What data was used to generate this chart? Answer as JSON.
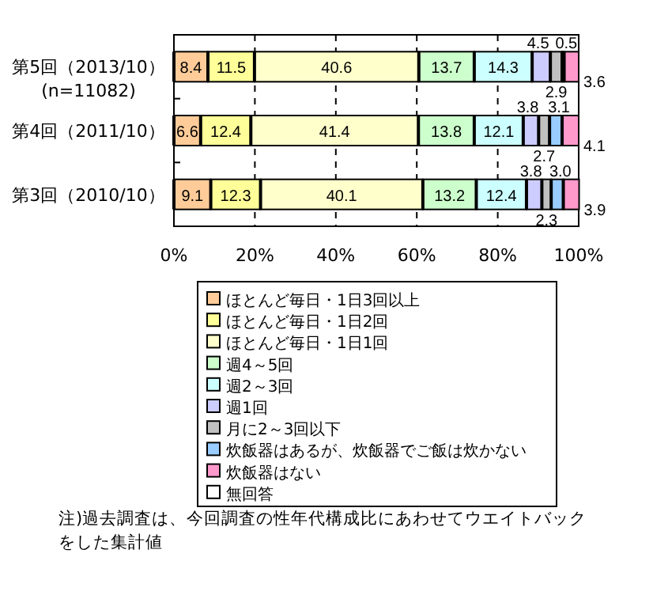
{
  "chart_data": {
    "type": "bar",
    "orientation": "horizontal",
    "stacked": true,
    "data_labels": true,
    "grid": "x",
    "legend": "bottom",
    "categories": [
      "第5回（2013/10）\n(n=11082)",
      "第4回（2011/10）",
      "第3回（2010/10）"
    ],
    "xlim": [
      0,
      100
    ],
    "xticks": [
      {
        "value": 0,
        "label": "0%"
      },
      {
        "value": 20,
        "label": "20%"
      },
      {
        "value": 40,
        "label": "40%"
      },
      {
        "value": 60,
        "label": "60%"
      },
      {
        "value": 80,
        "label": "80%"
      },
      {
        "value": 100,
        "label": "100%"
      }
    ],
    "series": [
      {
        "name": "ほとんど毎日・1日3回以上",
        "color": "#ffcc99",
        "values": [
          8.4,
          6.6,
          9.1
        ]
      },
      {
        "name": "ほとんど毎日・1日2回",
        "color": "#ffff99",
        "values": [
          11.5,
          12.4,
          12.3
        ]
      },
      {
        "name": "ほとんど毎日・1日1回",
        "color": "#ffffcc",
        "values": [
          40.6,
          41.4,
          40.1
        ]
      },
      {
        "name": "週4～5回",
        "color": "#ccffcc",
        "values": [
          13.7,
          13.8,
          13.2
        ]
      },
      {
        "name": "週2～3回",
        "color": "#ccffff",
        "values": [
          14.3,
          12.1,
          12.4
        ]
      },
      {
        "name": "週1回",
        "color": "#ccccff",
        "values": [
          4.5,
          3.8,
          3.8
        ]
      },
      {
        "name": "月に2～3回以下",
        "color": "#c0c0c0",
        "values": [
          2.9,
          2.7,
          2.3
        ]
      },
      {
        "name": "炊飯器はあるが、炊飯器でご飯は炊かない",
        "color": "#99ccff",
        "values": [
          0.5,
          3.1,
          3.0
        ],
        "value_labels": [
          "0.5",
          "3.1",
          "3.0"
        ]
      },
      {
        "name": "炊飯器はない",
        "color": "#ff99cc",
        "values": [
          3.6,
          4.1,
          3.9
        ]
      },
      {
        "name": "無回答",
        "color": "#ffffff",
        "values": [
          null,
          null,
          null
        ]
      }
    ],
    "annotations": [
      "注)過去調査は、今回調査の性年代構成比にあわせてウエイトバックをした集計値"
    ]
  }
}
